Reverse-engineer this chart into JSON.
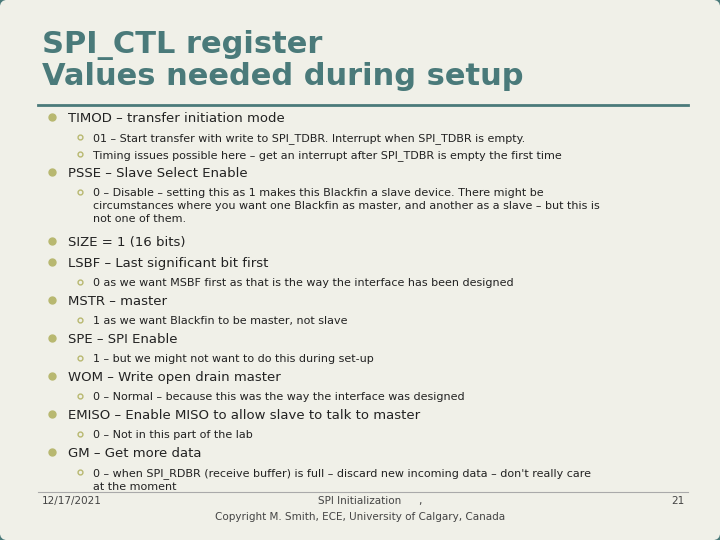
{
  "title_line1": "SPI_CTL register",
  "title_line2": "Values needed during setup",
  "bg_color": "#f0f0e8",
  "border_color": "#4a7a7a",
  "title_color": "#4a7a7a",
  "bullet_color": "#b8b870",
  "text_color": "#222222",
  "footer_date": "12/17/2021",
  "footer_title": "SPI Initialization",
  "footer_comma": ",",
  "footer_subtitle": "Copyright M. Smith, ECE, University of Calgary, Canada",
  "footer_page": "21",
  "separator_color": "#4a7a7a",
  "bullets": [
    {
      "text": "TIMOD – transfer initiation mode",
      "subbullets": [
        "01 – Start transfer with write to SPI_TDBR. Interrupt when SPI_TDBR is empty.",
        "Timing issues possible here – get an interrupt after SPI_TDBR is empty the first time"
      ]
    },
    {
      "text": "PSSE – Slave Select Enable",
      "subbullets": [
        "0 – Disable – setting this as 1 makes this Blackfin a slave device. There might be\ncircumstances where you want one Blackfin as master, and another as a slave – but this is\nnot one of them."
      ]
    },
    {
      "text": "SIZE = 1 (16 bits)",
      "subbullets": []
    },
    {
      "text": "LSBF – Last significant bit first",
      "subbullets": [
        "0 as we want MSBF first as that is the way the interface has been designed"
      ]
    },
    {
      "text": "MSTR – master",
      "subbullets": [
        "1 as we want Blackfin to be master, not slave"
      ]
    },
    {
      "text": "SPE – SPI Enable",
      "subbullets": [
        "1 – but we might not want to do this during set-up"
      ]
    },
    {
      "text": "WOM – Write open drain master",
      "subbullets": [
        "0 – Normal – because this was the way the interface was designed"
      ]
    },
    {
      "text": "EMISO – Enable MISO to allow slave to talk to master",
      "subbullets": [
        "0 – Not in this part of the lab"
      ]
    },
    {
      "text": "GM – Get more data",
      "subbullets": [
        "0 – when SPI_RDBR (receive buffer) is full – discard new incoming data – don't really care\nat the moment"
      ]
    }
  ]
}
